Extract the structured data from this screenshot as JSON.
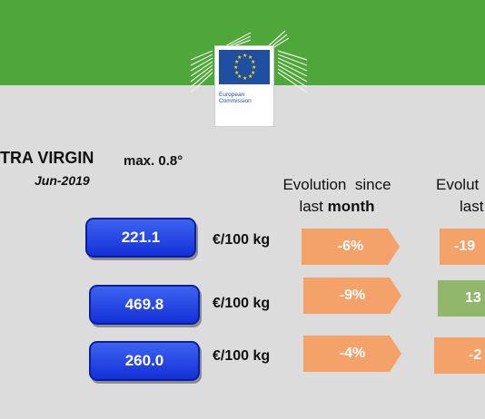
{
  "header": {
    "logo_line1": "European",
    "logo_line2": "Commission",
    "colors": {
      "band": "#4fa63a",
      "flag": "#1f4fa0"
    }
  },
  "product": {
    "title": "TRA VIRGIN",
    "spec": "max. 0.8°",
    "date": "Jun-2019"
  },
  "columns": {
    "month_line1": "Evolution  since",
    "month_line2_pre": "last ",
    "month_line2_bold": "month",
    "year_line1": "Evolut",
    "year_line2": "last"
  },
  "rows": [
    {
      "price": "221.1",
      "unit": "€/100 kg",
      "month": "-6%",
      "year": "-19"
    },
    {
      "price": "469.8",
      "unit": "€/100 kg",
      "month": "-9%",
      "year": "13"
    },
    {
      "price": "260.0",
      "unit": "€/100 kg",
      "month": "-4%",
      "year": "-2"
    }
  ],
  "colors": {
    "price_button": "#1f3fe6",
    "negative": "#f5a16a",
    "positive": "#90b76a"
  }
}
